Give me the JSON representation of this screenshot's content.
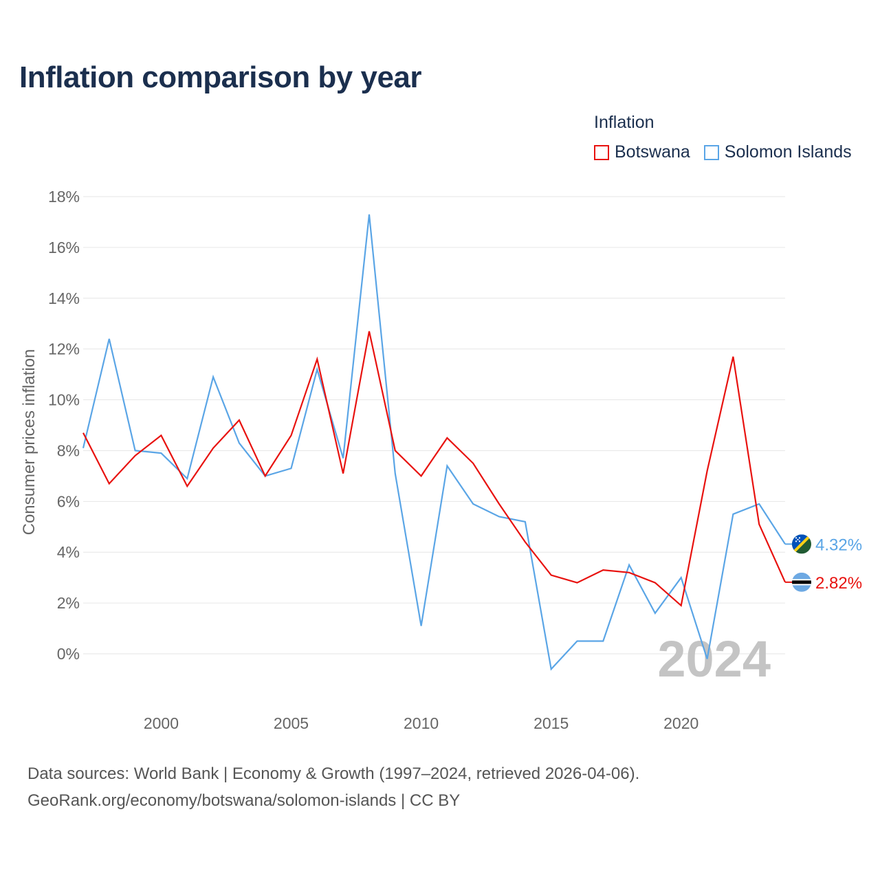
{
  "title": "Inflation comparison by year",
  "legend": {
    "title": "Inflation",
    "items": [
      {
        "label": "Botswana",
        "color": "#e8120f"
      },
      {
        "label": "Solomon Islands",
        "color": "#5aa5e6"
      }
    ]
  },
  "footer": {
    "line1": "Data sources: World Bank | Economy & Growth (1997–2024, retrieved 2026-04-06).",
    "line2": "GeoRank.org/economy/botswana/solomon-islands | CC BY"
  },
  "chart_data": {
    "type": "line",
    "title": "Inflation comparison by year",
    "xlabel": "",
    "ylabel": "Consumer prices inflation",
    "xlim": [
      1997,
      2024
    ],
    "ylim": [
      -1.8,
      18
    ],
    "yticks": [
      0,
      2,
      4,
      6,
      8,
      10,
      12,
      14,
      16,
      18
    ],
    "ytick_labels": [
      "0%",
      "2%",
      "4%",
      "6%",
      "8%",
      "10%",
      "12%",
      "14%",
      "16%",
      "18%"
    ],
    "xticks": [
      2000,
      2005,
      2010,
      2015,
      2020
    ],
    "xtick_labels": [
      "2000",
      "2005",
      "2010",
      "2015",
      "2020"
    ],
    "grid": true,
    "legend_position": "top-right",
    "watermark_year": "2024",
    "x": [
      1997,
      1998,
      1999,
      2000,
      2001,
      2002,
      2003,
      2004,
      2005,
      2006,
      2007,
      2008,
      2009,
      2010,
      2011,
      2012,
      2013,
      2014,
      2015,
      2016,
      2017,
      2018,
      2019,
      2020,
      2021,
      2022,
      2023,
      2024
    ],
    "series": [
      {
        "name": "Botswana",
        "color": "#e8120f",
        "flag": "botswana-flag",
        "end_label": "2.82%",
        "values": [
          8.7,
          6.7,
          7.8,
          8.6,
          6.6,
          8.1,
          9.2,
          7.0,
          8.6,
          11.6,
          7.1,
          12.7,
          8.0,
          7.0,
          8.5,
          7.5,
          5.9,
          4.4,
          3.1,
          2.8,
          3.3,
          3.2,
          2.8,
          1.9,
          7.2,
          11.7,
          5.1,
          2.82
        ]
      },
      {
        "name": "Solomon Islands",
        "color": "#5aa5e6",
        "flag": "solomon-islands-flag",
        "end_label": "4.32%",
        "values": [
          8.1,
          12.4,
          8.0,
          7.9,
          6.9,
          10.9,
          8.3,
          7.0,
          7.3,
          11.2,
          7.7,
          17.3,
          7.1,
          1.1,
          7.4,
          5.9,
          5.4,
          5.2,
          -0.6,
          0.5,
          0.5,
          3.5,
          1.6,
          3.0,
          -0.2,
          5.5,
          5.9,
          4.32
        ]
      }
    ]
  }
}
